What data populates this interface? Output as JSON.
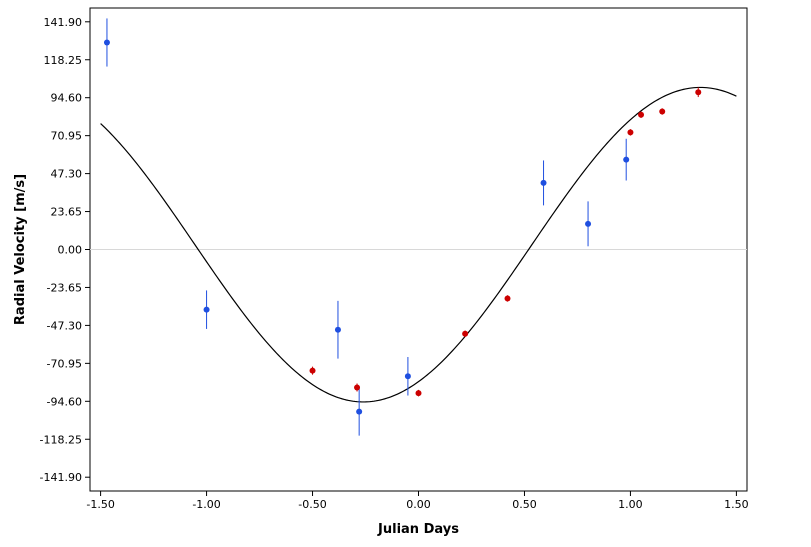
{
  "chart_data": {
    "type": "scatter",
    "title": "",
    "xlabel": "Julian Days",
    "ylabel": "Radial Velocity [m/s]",
    "xlim": [
      -1.55,
      1.55
    ],
    "ylim": [
      -150.5,
      150.5
    ],
    "x_ticks": [
      -1.5,
      -1.0,
      -0.5,
      0.0,
      0.5,
      1.0,
      1.5
    ],
    "x_tick_labels": [
      "-1.50",
      "-1.00",
      "-0.50",
      "0.00",
      "0.50",
      "1.00",
      "1.50"
    ],
    "y_ticks": [
      141.9,
      118.25,
      94.6,
      70.95,
      47.3,
      23.65,
      0.0,
      -23.65,
      -47.3,
      -70.95,
      -94.6,
      -118.25,
      -141.9
    ],
    "y_tick_labels": [
      "141.90",
      "118.25",
      "94.60",
      "70.95",
      "47.30",
      "23.65",
      "0.00",
      "-23.65",
      "-47.30",
      "-70.95",
      "-94.60",
      "-118.25",
      "-141.90"
    ],
    "zero_line": true,
    "grid": false,
    "legend": "none",
    "model_curve": {
      "color": "#000000",
      "description_free": true,
      "x_range": [
        -1.5,
        1.5
      ],
      "amplitude": 98,
      "offset": 3,
      "period": 3.18,
      "peak_x": 1.33
    },
    "series": [
      {
        "color": "#1f4fe0",
        "points": [
          {
            "x": -1.47,
            "y": 129.0,
            "err": 15.0
          },
          {
            "x": -1.0,
            "y": -37.5,
            "err": 12.0
          },
          {
            "x": -0.38,
            "y": -50.0,
            "err": 18.0
          },
          {
            "x": -0.28,
            "y": -101.0,
            "err": 15.0
          },
          {
            "x": -0.05,
            "y": -79.0,
            "err": 12.0
          },
          {
            "x": 0.59,
            "y": 41.5,
            "err": 14.0
          },
          {
            "x": 0.8,
            "y": 16.0,
            "err": 14.0
          },
          {
            "x": 0.98,
            "y": 56.0,
            "err": 13.0
          }
        ]
      },
      {
        "color": "#cc0000",
        "points": [
          {
            "x": -0.5,
            "y": -75.5,
            "err": 2.5
          },
          {
            "x": -0.29,
            "y": -86.0,
            "err": 2.5
          },
          {
            "x": 0.0,
            "y": -89.5,
            "err": 2.0
          },
          {
            "x": 0.22,
            "y": -52.5,
            "err": 2.0
          },
          {
            "x": 0.42,
            "y": -30.5,
            "err": 2.0
          },
          {
            "x": 1.0,
            "y": 73.0,
            "err": 2.0
          },
          {
            "x": 1.05,
            "y": 84.0,
            "err": 2.0
          },
          {
            "x": 1.15,
            "y": 86.0,
            "err": 2.0
          },
          {
            "x": 1.32,
            "y": 98.0,
            "err": 3.0
          }
        ]
      }
    ]
  }
}
